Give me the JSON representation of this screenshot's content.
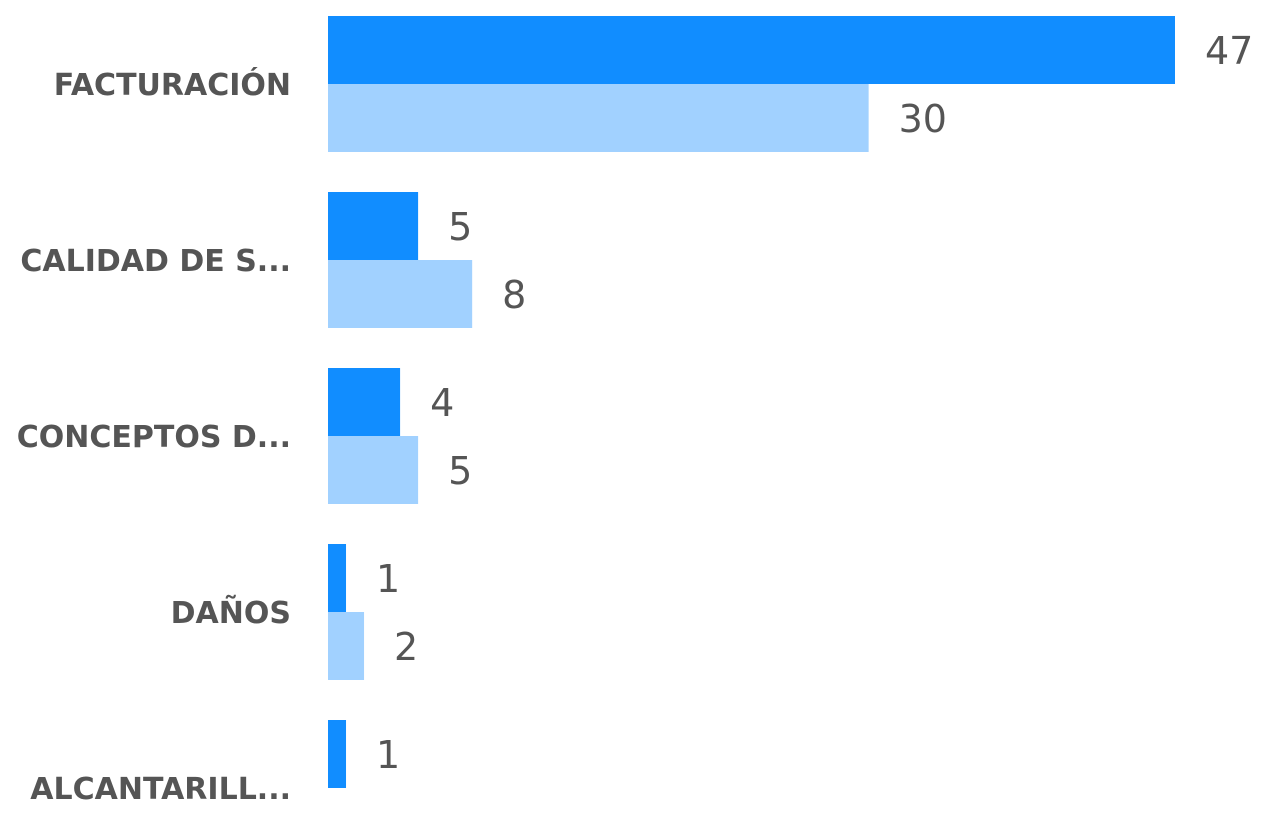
{
  "chart_data": {
    "type": "bar",
    "orientation": "horizontal",
    "categories": [
      "FACTURACIÓN",
      "CALIDAD DE S...",
      "CONCEPTOS D...",
      "DAÑOS",
      "ALCANTARILL..."
    ],
    "series": [
      {
        "color": "#118DFF",
        "values": [
          47,
          5,
          4,
          1,
          1
        ]
      },
      {
        "color": "#A1D1FF",
        "values": [
          30,
          8,
          5,
          2,
          null
        ]
      }
    ],
    "xlim": [
      0,
      47
    ],
    "grid": false,
    "legend": "none",
    "data_labels": true
  }
}
